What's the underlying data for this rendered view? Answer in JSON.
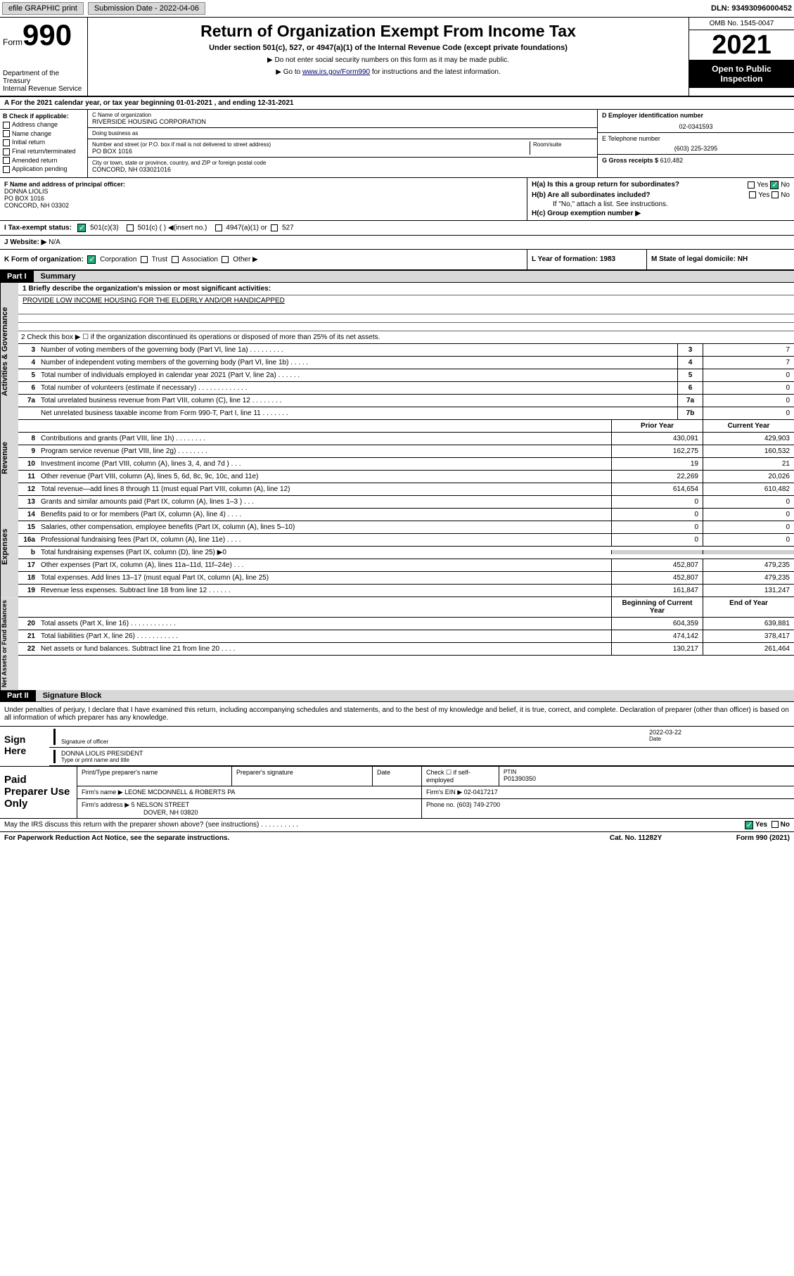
{
  "topbar": {
    "efile": "efile GRAPHIC print",
    "submission_label": "Submission Date - 2022-04-06",
    "dln": "DLN: 93493096000452"
  },
  "header": {
    "form_label": "Form",
    "form_num": "990",
    "title": "Return of Organization Exempt From Income Tax",
    "sub": "Under section 501(c), 527, or 4947(a)(1) of the Internal Revenue Code (except private foundations)",
    "note1": "▶ Do not enter social security numbers on this form as it may be made public.",
    "note2_pre": "▶ Go to ",
    "note2_link": "www.irs.gov/Form990",
    "note2_post": " for instructions and the latest information.",
    "dept": "Department of the Treasury\nInternal Revenue Service",
    "omb": "OMB No. 1545-0047",
    "year": "2021",
    "inspection": "Open to Public Inspection"
  },
  "row_a": {
    "text": "A For the 2021 calendar year, or tax year beginning 01-01-2021    , and ending 12-31-2021"
  },
  "col_b": {
    "title": "B Check if applicable:",
    "opts": [
      "Address change",
      "Name change",
      "Initial return",
      "Final return/terminated",
      "Amended return",
      "Application pending"
    ]
  },
  "col_c": {
    "name_label": "C Name of organization",
    "name": "RIVERSIDE HOUSING CORPORATION",
    "dba_label": "Doing business as",
    "dba": "",
    "addr_label": "Number and street (or P.O. box if mail is not delivered to street address)",
    "room_label": "Room/suite",
    "addr": "PO BOX 1016",
    "city_label": "City or town, state or province, country, and ZIP or foreign postal code",
    "city": "CONCORD, NH  033021016"
  },
  "col_d": {
    "ein_label": "D Employer identification number",
    "ein": "02-0341593",
    "tel_label": "E Telephone number",
    "tel": "(603) 225-3295",
    "gross_label": "G Gross receipts $",
    "gross": "610,482"
  },
  "section_f": {
    "label": "F  Name and address of principal officer:",
    "name": "DONNA LIOLIS",
    "addr1": "PO BOX 1016",
    "addr2": "CONCORD, NH  03302",
    "ha": "H(a)  Is this a group return for subordinates?",
    "ha_no": "No",
    "ha_yes": "Yes",
    "hb": "H(b)  Are all subordinates included?",
    "hb_yes": "Yes",
    "hb_no": "No",
    "hb_note": "If \"No,\" attach a list. See instructions.",
    "hc": "H(c)  Group exemption number ▶"
  },
  "row_i": {
    "label": "I    Tax-exempt status:",
    "opt1": "501(c)(3)",
    "opt2": "501(c) (  ) ◀(insert no.)",
    "opt3": "4947(a)(1) or",
    "opt4": "527"
  },
  "row_j": {
    "label": "J   Website: ▶",
    "val": "N/A"
  },
  "row_k": {
    "label": "K Form of organization:",
    "opts": [
      "Corporation",
      "Trust",
      "Association",
      "Other ▶"
    ],
    "l": "L Year of formation: 1983",
    "m": "M State of legal domicile: NH"
  },
  "part1": {
    "hdr": "Part I",
    "title": "Summary"
  },
  "mission": {
    "label": "1   Briefly describe the organization's mission or most significant activities:",
    "text": "PROVIDE LOW INCOME HOUSING FOR THE ELDERLY AND/OR HANDICAPPED"
  },
  "line2": {
    "text": "2   Check this box ▶ ☐  if the organization discontinued its operations or disposed of more than 25% of its net assets."
  },
  "governance": [
    {
      "n": "3",
      "d": "Number of voting members of the governing body (Part VI, line 1a)   .    .    .    .    .    .    .    .    .",
      "b": "3",
      "v": "7"
    },
    {
      "n": "4",
      "d": "Number of independent voting members of the governing body (Part VI, line 1b)  .    .    .    .    .",
      "b": "4",
      "v": "7"
    },
    {
      "n": "5",
      "d": "Total number of individuals employed in calendar year 2021 (Part V, line 2a)   .    .    .    .    .    .",
      "b": "5",
      "v": "0"
    },
    {
      "n": "6",
      "d": "Total number of volunteers (estimate if necessary)   .    .    .    .    .    .    .    .    .    .    .    .    .",
      "b": "6",
      "v": "0"
    },
    {
      "n": "7a",
      "d": "Total unrelated business revenue from Part VIII, column (C), line 12  .    .    .    .    .    .    .    .",
      "b": "7a",
      "v": "0"
    },
    {
      "n": "",
      "d": "Net unrelated business taxable income from Form 990-T, Part I, line 11  .    .    .    .    .    .    .",
      "b": "7b",
      "v": "0"
    }
  ],
  "col_hdrs": {
    "prior": "Prior Year",
    "current": "Current Year",
    "begin": "Beginning of Current Year",
    "end": "End of Year"
  },
  "revenue": [
    {
      "n": "8",
      "d": "Contributions and grants (Part VIII, line 1h)   .    .    .    .    .    .    .    .",
      "p": "430,091",
      "c": "429,903"
    },
    {
      "n": "9",
      "d": "Program service revenue (Part VIII, line 2g)   .    .    .    .    .    .    .    .",
      "p": "162,275",
      "c": "160,532"
    },
    {
      "n": "10",
      "d": "Investment income (Part VIII, column (A), lines 3, 4, and 7d )  .    .    .",
      "p": "19",
      "c": "21"
    },
    {
      "n": "11",
      "d": "Other revenue (Part VIII, column (A), lines 5, 6d, 8c, 9c, 10c, and 11e)",
      "p": "22,269",
      "c": "20,026"
    },
    {
      "n": "12",
      "d": "Total revenue—add lines 8 through 11 (must equal Part VIII, column (A), line 12)",
      "p": "614,654",
      "c": "610,482"
    }
  ],
  "expenses": [
    {
      "n": "13",
      "d": "Grants and similar amounts paid (Part IX, column (A), lines 1–3 )  .    .    .",
      "p": "0",
      "c": "0"
    },
    {
      "n": "14",
      "d": "Benefits paid to or for members (Part IX, column (A), line 4)   .    .    .    .",
      "p": "0",
      "c": "0"
    },
    {
      "n": "15",
      "d": "Salaries, other compensation, employee benefits (Part IX, column (A), lines 5–10)",
      "p": "0",
      "c": "0"
    },
    {
      "n": "16a",
      "d": "Professional fundraising fees (Part IX, column (A), line 11e)   .    .    .    .",
      "p": "0",
      "c": "0"
    },
    {
      "n": "b",
      "d": "Total fundraising expenses (Part IX, column (D), line 25) ▶0",
      "p": "",
      "c": "",
      "shaded": true
    },
    {
      "n": "17",
      "d": "Other expenses (Part IX, column (A), lines 11a–11d, 11f–24e)  .    .    .",
      "p": "452,807",
      "c": "479,235"
    },
    {
      "n": "18",
      "d": "Total expenses. Add lines 13–17 (must equal Part IX, column (A), line 25)",
      "p": "452,807",
      "c": "479,235"
    },
    {
      "n": "19",
      "d": "Revenue less expenses. Subtract line 18 from line 12  .    .    .    .    .    .",
      "p": "161,847",
      "c": "131,247"
    }
  ],
  "netassets": [
    {
      "n": "20",
      "d": "Total assets (Part X, line 16)  .    .    .    .    .    .    .    .    .    .    .    .",
      "p": "604,359",
      "c": "639,881"
    },
    {
      "n": "21",
      "d": "Total liabilities (Part X, line 26)  .    .    .    .    .    .    .    .    .    .    .",
      "p": "474,142",
      "c": "378,417"
    },
    {
      "n": "22",
      "d": "Net assets or fund balances. Subtract line 21 from line 20   .    .    .    .",
      "p": "130,217",
      "c": "261,464"
    }
  ],
  "side_labels": {
    "gov": "Activities & Governance",
    "rev": "Revenue",
    "exp": "Expenses",
    "net": "Net Assets or Fund Balances"
  },
  "part2": {
    "hdr": "Part II",
    "title": "Signature Block"
  },
  "sig": {
    "perjury": "Under penalties of perjury, I declare that I have examined this return, including accompanying schedules and statements, and to the best of my knowledge and belief, it is true, correct, and complete. Declaration of preparer (other than officer) is based on all information of which preparer has any knowledge.",
    "sign_here": "Sign Here",
    "sig_officer": "Signature of officer",
    "date_label": "Date",
    "date": "2022-03-22",
    "name_title": "DONNA LIOLIS PRESIDENT",
    "type_label": "Type or print name and title"
  },
  "preparer": {
    "title": "Paid Preparer Use Only",
    "col1": "Print/Type preparer's name",
    "col2": "Preparer's signature",
    "col3": "Date",
    "check_label": "Check ☐ if self-employed",
    "ptin_label": "PTIN",
    "ptin": "P01390350",
    "firm_name_label": "Firm's name    ▶",
    "firm_name": "LEONE MCDONNELL & ROBERTS PA",
    "firm_ein_label": "Firm's EIN ▶",
    "firm_ein": "02-0417217",
    "firm_addr_label": "Firm's address ▶",
    "firm_addr1": "5 NELSON STREET",
    "firm_addr2": "DOVER, NH  03820",
    "phone_label": "Phone no.",
    "phone": "(603) 749-2700"
  },
  "bottom": {
    "q": "May the IRS discuss this return with the preparer shown above? (see instructions)   .    .    .    .    .    .    .    .    .    .",
    "yes": "Yes",
    "no": "No"
  },
  "footer": {
    "left": "For Paperwork Reduction Act Notice, see the separate instructions.",
    "mid": "Cat. No. 11282Y",
    "right": "Form 990 (2021)"
  }
}
